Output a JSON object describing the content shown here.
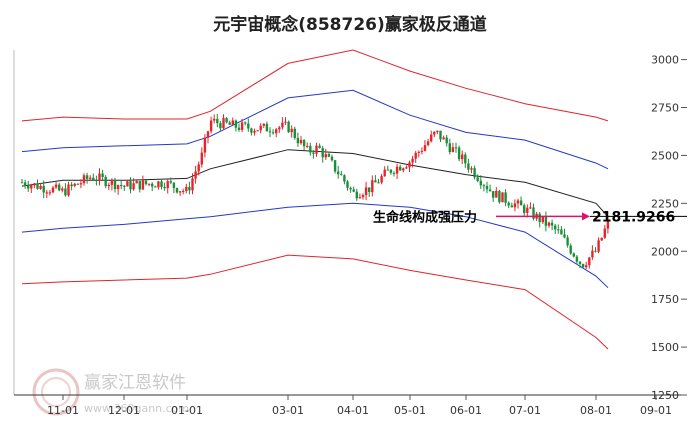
{
  "chart_data": {
    "type": "candlestick",
    "title": "元宇宙概念(858726)赢家极反通道",
    "x_ticks": [
      "11-01",
      "12-01",
      "01-01",
      "03-01",
      "04-01",
      "05-01",
      "06-01",
      "07-01",
      "08-01",
      "09-01"
    ],
    "y_ticks": [
      "3000",
      "2750",
      "2500",
      "2250",
      "2000",
      "1750",
      "1500",
      "1250"
    ],
    "ylim": [
      1250,
      3050
    ],
    "annotation": {
      "label": "生命线构成强压力",
      "value": "2181.9266",
      "value_num": 2181.9266
    },
    "colors": {
      "up": "#e8242b",
      "down": "#1a8f3a",
      "outer_band": "#e0242b",
      "inner_band": "#2438c8",
      "life_line": "#222222",
      "arrow": "#e0106a",
      "ref_line": "#000000"
    },
    "bands": {
      "x": [
        "10-15",
        "11-01",
        "12-01",
        "01-01",
        "01-15",
        "03-01",
        "04-01",
        "05-01",
        "06-01",
        "07-01",
        "08-01",
        "08-07"
      ],
      "outer_upper": [
        2680,
        2700,
        2690,
        2690,
        2730,
        2980,
        3050,
        2940,
        2850,
        2770,
        2700,
        2680
      ],
      "inner_upper": [
        2520,
        2540,
        2550,
        2560,
        2600,
        2800,
        2840,
        2710,
        2620,
        2580,
        2460,
        2430
      ],
      "life_line": [
        2340,
        2370,
        2370,
        2380,
        2430,
        2530,
        2510,
        2450,
        2400,
        2360,
        2250,
        2180
      ],
      "inner_lower": [
        2100,
        2120,
        2140,
        2170,
        2180,
        2230,
        2250,
        2230,
        2180,
        2100,
        1870,
        1810
      ],
      "outer_lower": [
        1830,
        1840,
        1850,
        1860,
        1880,
        1980,
        1960,
        1900,
        1850,
        1800,
        1550,
        1490
      ]
    },
    "price_path": [
      [
        "10-15",
        2360
      ],
      [
        "11-01",
        2310
      ],
      [
        "11-15",
        2390
      ],
      [
        "12-01",
        2340
      ],
      [
        "12-20",
        2360
      ],
      [
        "01-01",
        2310
      ],
      [
        "01-10",
        2500
      ],
      [
        "01-15",
        2680
      ],
      [
        "02-01",
        2650
      ],
      [
        "02-15",
        2640
      ],
      [
        "03-01",
        2650
      ],
      [
        "03-10",
        2520
      ],
      [
        "03-15",
        2540
      ],
      [
        "03-25",
        2400
      ],
      [
        "04-01",
        2300
      ],
      [
        "04-10",
        2330
      ],
      [
        "04-20",
        2420
      ],
      [
        "05-01",
        2470
      ],
      [
        "05-15",
        2620
      ],
      [
        "06-01",
        2460
      ],
      [
        "06-15",
        2300
      ],
      [
        "07-01",
        2220
      ],
      [
        "07-15",
        2100
      ],
      [
        "07-25",
        1930
      ],
      [
        "08-01",
        2000
      ],
      [
        "08-07",
        2150
      ]
    ]
  }
}
